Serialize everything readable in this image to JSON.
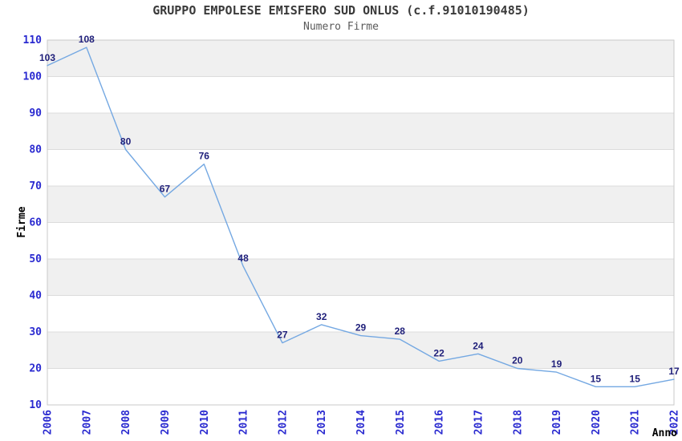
{
  "header": {
    "title": "GRUPPO EMPOLESE EMISFERO SUD ONLUS (c.f.91010190485)",
    "subtitle": "Numero Firme"
  },
  "chart_data": {
    "type": "line",
    "title": "GRUPPO EMPOLESE EMISFERO SUD ONLUS (c.f.91010190485)",
    "subtitle": "Numero Firme",
    "xlabel": "Anno",
    "ylabel": "Firme",
    "categories": [
      "2006",
      "2007",
      "2008",
      "2009",
      "2010",
      "2011",
      "2012",
      "2013",
      "2014",
      "2015",
      "2016",
      "2017",
      "2018",
      "2019",
      "2020",
      "2021",
      "2022"
    ],
    "values": [
      103,
      108,
      80,
      67,
      76,
      48,
      27,
      32,
      29,
      28,
      22,
      24,
      20,
      19,
      15,
      15,
      17
    ],
    "ylim": [
      10,
      110
    ],
    "ytick_step": 10,
    "yticks": [
      10,
      20,
      30,
      40,
      50,
      60,
      70,
      80,
      90,
      100,
      110
    ],
    "grid": true,
    "legend": "none",
    "band_pattern": "alternating-horizontal",
    "colors": {
      "line": "#74a8e2",
      "tick_label": "#2a2ad0",
      "data_label": "#1f1f7a",
      "band": "#f0f0f0",
      "gridline": "#dcdcdc",
      "plot_border": "#c9c9c9",
      "title": "#3a3a3a",
      "subtitle": "#5a5a5a",
      "axis_title": "#000000",
      "background": "#ffffff"
    }
  }
}
